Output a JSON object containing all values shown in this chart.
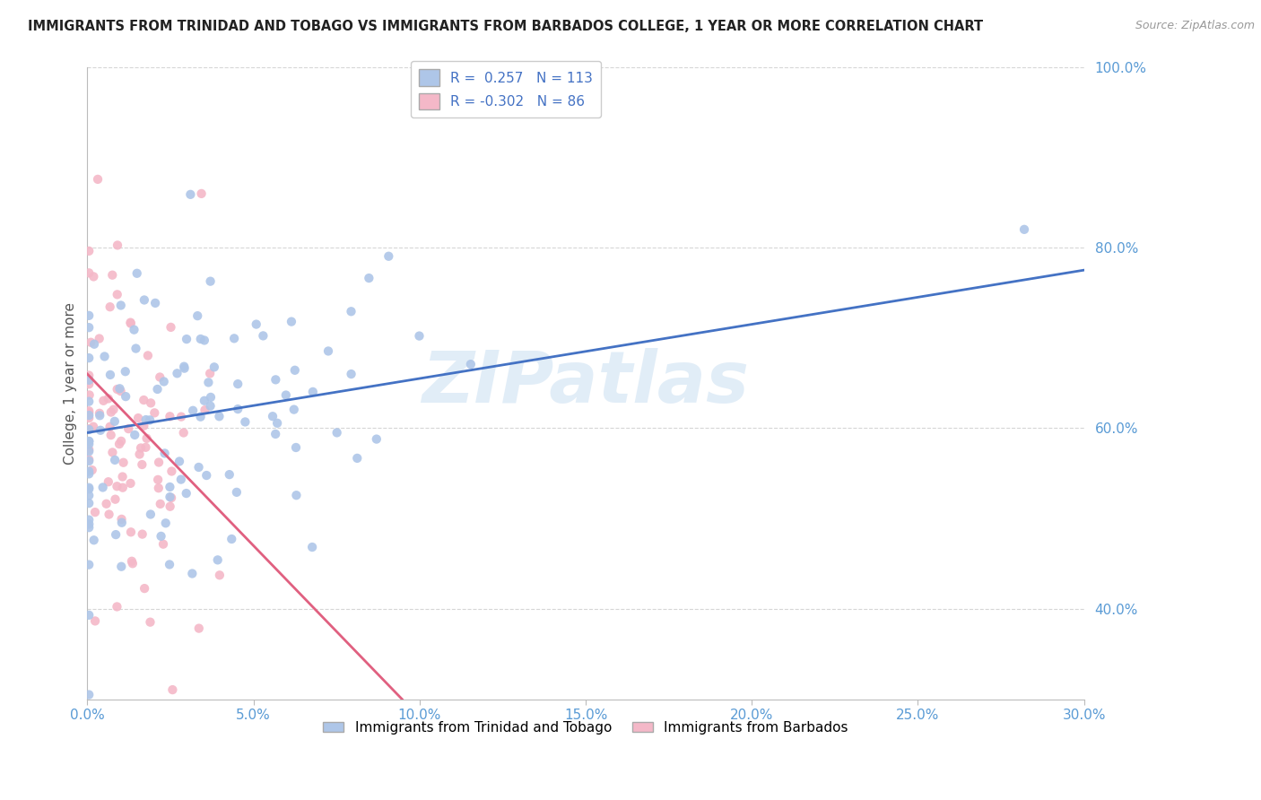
{
  "title": "IMMIGRANTS FROM TRINIDAD AND TOBAGO VS IMMIGRANTS FROM BARBADOS COLLEGE, 1 YEAR OR MORE CORRELATION CHART",
  "source": "Source: ZipAtlas.com",
  "ylabel_label": "College, 1 year or more",
  "series1": {
    "name": "Immigrants from Trinidad and Tobago",
    "color": "#aec6e8",
    "line_color": "#4472c4",
    "R": 0.257,
    "N": 113
  },
  "series2": {
    "name": "Immigrants from Barbados",
    "color": "#f4b8c8",
    "line_color": "#e06080",
    "R": -0.302,
    "N": 86
  },
  "xlim": [
    0.0,
    0.3
  ],
  "ylim": [
    0.3,
    1.0
  ],
  "x_ticks": [
    0.0,
    0.05,
    0.1,
    0.15,
    0.2,
    0.25,
    0.3
  ],
  "y_ticks": [
    0.4,
    0.6,
    0.8,
    1.0
  ],
  "watermark": "ZIPatlas",
  "background_color": "#ffffff",
  "grid_color": "#cccccc",
  "tick_label_color": "#5a9bd5",
  "title_fontsize": 10.5,
  "source_fontsize": 9
}
